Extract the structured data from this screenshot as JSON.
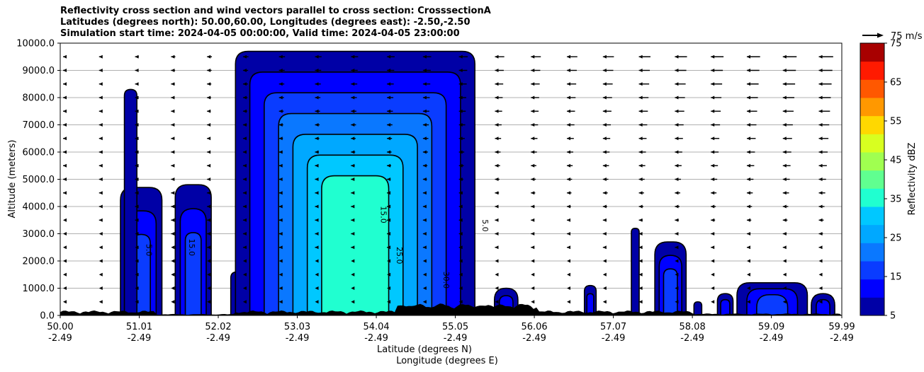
{
  "chart_data": {
    "type": "contour-cross-section",
    "title_lines": [
      "Reflectivity cross section and wind vectors parallel to cross section: CrosssectionA",
      "Latitudes (degrees north): 50.00,60.00, Longitudes (degrees east): -2.50,-2.50",
      "Simulation start time: 2024-04-05 00:00:00, Valid time: 2024-04-05 23:00:00"
    ],
    "ylabel": "Altitude (meters)",
    "xlabel_lat": "Latitude (degrees N)",
    "xlabel_lon": "Longitude (degrees E)",
    "colorbar_label": "Reflectivity dBZ",
    "wind_key_label": "75 m/s",
    "ylim": [
      0,
      10000
    ],
    "yticks": [
      "0.0",
      "1000.0",
      "2000.0",
      "3000.0",
      "4000.0",
      "5000.0",
      "6000.0",
      "7000.0",
      "8000.0",
      "9000.0",
      "10000.0"
    ],
    "xlim": [
      50.0,
      59.99
    ],
    "xticks": [
      {
        "lat": "50.00",
        "lon": "-2.49"
      },
      {
        "lat": "51.01",
        "lon": "-2.49"
      },
      {
        "lat": "52.02",
        "lon": "-2.49"
      },
      {
        "lat": "53.03",
        "lon": "-2.49"
      },
      {
        "lat": "54.04",
        "lon": "-2.49"
      },
      {
        "lat": "55.05",
        "lon": "-2.49"
      },
      {
        "lat": "56.06",
        "lon": "-2.49"
      },
      {
        "lat": "57.07",
        "lon": "-2.49"
      },
      {
        "lat": "58.08",
        "lon": "-2.49"
      },
      {
        "lat": "59.09",
        "lon": "-2.49"
      },
      {
        "lat": "59.99",
        "lon": "-2.49"
      }
    ],
    "colorbar_levels": [
      5,
      10,
      15,
      20,
      25,
      30,
      35,
      40,
      45,
      50,
      55,
      60,
      65,
      70,
      75
    ],
    "colorbar_ticks": [
      "5",
      "15",
      "25",
      "35",
      "45",
      "55",
      "65",
      "75"
    ],
    "colorbar_colors": [
      "#0000a6",
      "#0000ff",
      "#0a3cff",
      "#0a78ff",
      "#00a8ff",
      "#00c8ff",
      "#20ffd0",
      "#60ff90",
      "#a0ff50",
      "#d8ff20",
      "#ffd800",
      "#ff9800",
      "#ff5800",
      "#ff1a00",
      "#a80000"
    ],
    "grid": "horizontal",
    "contour_labels": [
      "5.0",
      "15.0",
      "25.0",
      "30.0",
      "20.0"
    ],
    "cells": [
      {
        "lat_min": 50.77,
        "lat_max": 51.3,
        "alt_top": 4700,
        "peak_dbz": 15
      },
      {
        "lat_min": 50.82,
        "lat_max": 50.98,
        "alt_top": 8300,
        "peak_dbz": 5
      },
      {
        "lat_min": 51.47,
        "lat_max": 51.93,
        "alt_top": 4800,
        "peak_dbz": 15
      },
      {
        "lat_min": 52.18,
        "lat_max": 52.34,
        "alt_top": 1600,
        "peak_dbz": 5
      },
      {
        "lat_min": 52.24,
        "lat_max": 55.3,
        "alt_top": 9700,
        "peak_dbz": 35
      },
      {
        "lat_min": 55.55,
        "lat_max": 55.85,
        "alt_top": 1000,
        "peak_dbz": 10
      },
      {
        "lat_min": 56.7,
        "lat_max": 56.85,
        "alt_top": 1100,
        "peak_dbz": 10
      },
      {
        "lat_min": 57.3,
        "lat_max": 57.4,
        "alt_top": 3200,
        "peak_dbz": 5
      },
      {
        "lat_min": 57.6,
        "lat_max": 58.0,
        "alt_top": 2700,
        "peak_dbz": 15
      },
      {
        "lat_min": 58.1,
        "lat_max": 58.2,
        "alt_top": 500,
        "peak_dbz": 5
      },
      {
        "lat_min": 58.4,
        "lat_max": 58.6,
        "alt_top": 800,
        "peak_dbz": 10
      },
      {
        "lat_min": 58.65,
        "lat_max": 59.55,
        "alt_top": 1200,
        "peak_dbz": 15
      },
      {
        "lat_min": 59.6,
        "lat_max": 59.9,
        "alt_top": 800,
        "peak_dbz": 10
      }
    ],
    "wind_rows_alt": [
      9500,
      9000,
      8500,
      8000,
      7500,
      7000,
      6500,
      6000,
      5500,
      5000,
      4500,
      4000,
      3500,
      3000,
      2500,
      2000,
      1500,
      1000,
      500
    ],
    "wind_cols_lat": [
      50.0,
      50.46,
      50.92,
      51.38,
      51.84,
      52.3,
      52.76,
      53.22,
      53.68,
      54.14,
      54.6,
      55.06,
      55.52,
      55.98,
      56.44,
      56.9,
      57.36,
      57.82,
      58.28,
      58.74,
      59.2,
      59.66
    ]
  }
}
